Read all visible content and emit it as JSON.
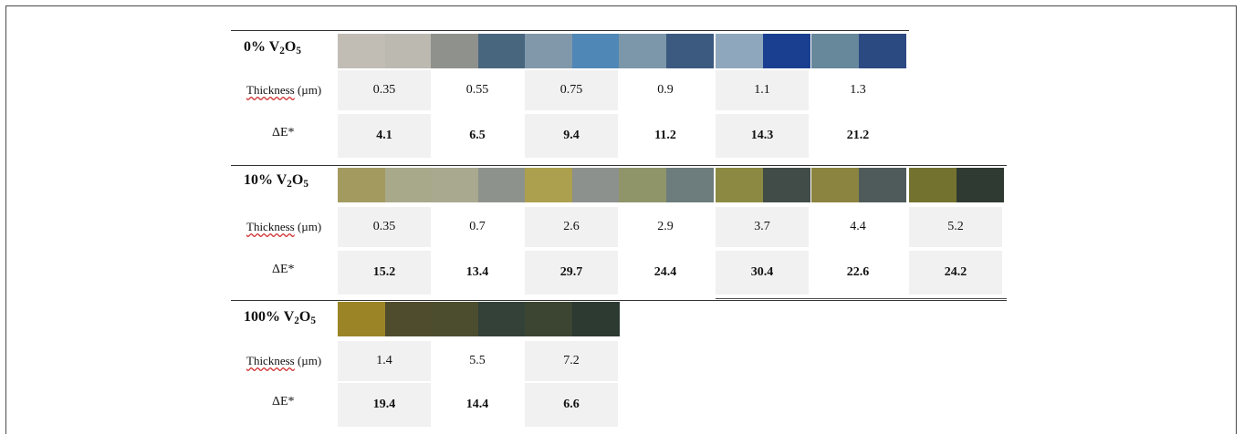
{
  "labels": {
    "thickness_word": "Thickness",
    "thickness_unit": "(µm)",
    "delta_e": "ΔE*"
  },
  "sections": [
    {
      "label_prefix": "0% V",
      "label_sub1": "2",
      "label_mid": "O",
      "label_sub2": "5",
      "thickness": [
        "0.35",
        "0.55",
        "0.75",
        "0.9",
        "1.1",
        "1.3"
      ],
      "delta_e": [
        "4.1",
        "6.5",
        "9.4",
        "11.2",
        "14.3",
        "21.2"
      ],
      "swatch_colors": [
        [
          "#c1bdb5",
          "#bcb9b1"
        ],
        [
          "#8f918c",
          "#49667f"
        ],
        [
          "#8098aa",
          "#4f87b6"
        ],
        [
          "#7b97a9",
          "#3c5a80"
        ],
        [
          "#8ea7bd",
          "#1b3f90"
        ],
        [
          "#67879b",
          "#2b4a82"
        ]
      ]
    },
    {
      "label_prefix": "10% V",
      "label_sub1": "2",
      "label_mid": "O",
      "label_sub2": "5",
      "thickness": [
        "0.35",
        "0.7",
        "2.6",
        "2.9",
        "3.7",
        "4.4",
        "5.2"
      ],
      "delta_e": [
        "15.2",
        "13.4",
        "29.7",
        "24.4",
        "30.4",
        "22.6",
        "24.2"
      ],
      "swatch_colors": [
        [
          "#a39a60",
          "#a8a98a"
        ],
        [
          "#a8a98e",
          "#8d928c"
        ],
        [
          "#aca04e",
          "#8c918e"
        ],
        [
          "#8f9569",
          "#6d7c7c"
        ],
        [
          "#8c8a42",
          "#414c49"
        ],
        [
          "#8b8440",
          "#4e5b5a"
        ],
        [
          "#74722f",
          "#2f3a33"
        ]
      ]
    },
    {
      "label_prefix": "100% V",
      "label_sub1": "2",
      "label_mid": "O",
      "label_sub2": "5",
      "thickness": [
        "1.4",
        "5.5",
        "7.2"
      ],
      "delta_e": [
        "19.4",
        "14.4",
        "6.6"
      ],
      "swatch_colors": [
        [
          "#9a8426",
          "#4e4c2c"
        ],
        [
          "#4b4d2e",
          "#334138"
        ],
        [
          "#3b4532",
          "#2d3a32"
        ]
      ]
    }
  ]
}
